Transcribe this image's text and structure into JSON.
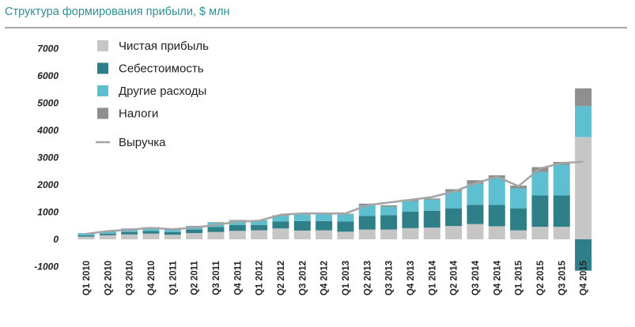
{
  "chart_data": {
    "type": "bar",
    "title": "Структура формирования прибыли, $ млн",
    "xlabel": "",
    "ylabel": "",
    "ylim": [
      -1000,
      7000
    ],
    "yticks": [
      7000,
      6000,
      5000,
      4000,
      3000,
      2000,
      1000,
      0,
      -1000
    ],
    "categories": [
      "Q1 2010",
      "Q2 2010",
      "Q3 2010",
      "Q4 2010",
      "Q1 2011",
      "Q2 2011",
      "Q3 2011",
      "Q4 2011",
      "Q1 2012",
      "Q2 2012",
      "Q3 2012",
      "Q4 2012",
      "Q1 2013",
      "Q2 2013",
      "Q3 2013",
      "Q4 2013",
      "Q1 2014",
      "Q2 2014",
      "Q3 2014",
      "Q4 2014",
      "Q1 2015",
      "Q2 2015",
      "Q3 2015",
      "Q4 2015"
    ],
    "series": [
      {
        "name": "Чистая прибыль",
        "color": "#c6c6c6",
        "values": [
          100,
          150,
          180,
          210,
          170,
          230,
          270,
          310,
          330,
          400,
          320,
          330,
          280,
          360,
          360,
          410,
          430,
          490,
          560,
          480,
          330,
          460,
          460,
          3750
        ]
      },
      {
        "name": "Себестоимость",
        "color": "#2e7f87",
        "values": [
          50,
          60,
          90,
          100,
          100,
          130,
          180,
          220,
          200,
          260,
          350,
          340,
          380,
          500,
          530,
          610,
          620,
          640,
          700,
          780,
          800,
          1150,
          1150,
          -1150
        ]
      },
      {
        "name": "Другие расходы",
        "color": "#5dbfcf",
        "values": [
          70,
          80,
          120,
          120,
          110,
          120,
          160,
          160,
          150,
          200,
          240,
          250,
          250,
          380,
          310,
          380,
          410,
          620,
          780,
          1000,
          740,
          860,
          1130,
          1140
        ]
      },
      {
        "name": "Налоги",
        "color": "#8f8f8f",
        "values": [
          10,
          10,
          10,
          15,
          10,
          15,
          20,
          20,
          15,
          25,
          30,
          25,
          30,
          70,
          50,
          60,
          40,
          90,
          130,
          90,
          100,
          180,
          100,
          650
        ]
      }
    ],
    "line": {
      "name": "Выручка",
      "color": "#a4a4a4",
      "values": [
        200,
        300,
        350,
        420,
        370,
        430,
        530,
        650,
        680,
        900,
        950,
        950,
        950,
        1250,
        1350,
        1450,
        1550,
        1750,
        2050,
        2300,
        1950,
        2600,
        2800,
        2850
      ]
    },
    "legend": [
      {
        "label": "Чистая прибыль",
        "kind": "box",
        "color": "#c6c6c6"
      },
      {
        "label": "Себестоимость",
        "kind": "box",
        "color": "#2e7f87"
      },
      {
        "label": "Другие расходы",
        "kind": "box",
        "color": "#5dbfcf"
      },
      {
        "label": "Налоги",
        "kind": "box",
        "color": "#8f8f8f"
      },
      {
        "label": "Выручка",
        "kind": "line",
        "color": "#a4a4a4"
      }
    ]
  }
}
